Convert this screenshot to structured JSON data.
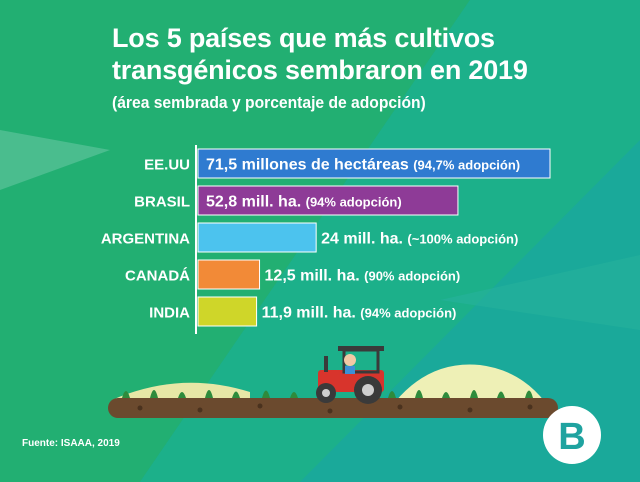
{
  "header": {
    "title_line1": "Los 5 países que más cultivos",
    "title_line2": "transgénicos sembraron en 2019",
    "subtitle": "(área sembrada y porcentaje de adopción)"
  },
  "footer": {
    "source": "Fuente: ISAAA, 2019",
    "logo_text": "B"
  },
  "colors": {
    "bg_teal": "#1aa99a",
    "bg_green": "#24b26c",
    "axis": "#ffffff",
    "label": "#ffffff"
  },
  "chart_data": {
    "type": "bar",
    "orientation": "horizontal",
    "unit": "millones de hectáreas",
    "categories": [
      "EE.UU",
      "BRASIL",
      "ARGENTINA",
      "CANADÁ",
      "INDIA"
    ],
    "values": [
      71.5,
      52.8,
      24,
      12.5,
      11.9
    ],
    "adoption_percent": [
      94.7,
      94,
      100,
      90,
      94
    ],
    "bar_colors": [
      "#2f7bd0",
      "#8e3b97",
      "#4cc3ee",
      "#f28a37",
      "#cfd629"
    ],
    "value_labels": [
      "71,5 millones de hectáreas",
      "52,8 mill. ha.",
      "24 mill. ha.",
      "12,5 mill. ha.",
      "11,9 mill. ha."
    ],
    "adoption_labels": [
      "(94,7% adopción)",
      "(94% adopción)",
      "(~100% adopción)",
      "(90% adopción)",
      "(94% adopción)"
    ],
    "label_inside": [
      true,
      true,
      false,
      false,
      false
    ],
    "xlim": [
      0,
      71.5
    ],
    "grid": false,
    "legend": "none"
  }
}
